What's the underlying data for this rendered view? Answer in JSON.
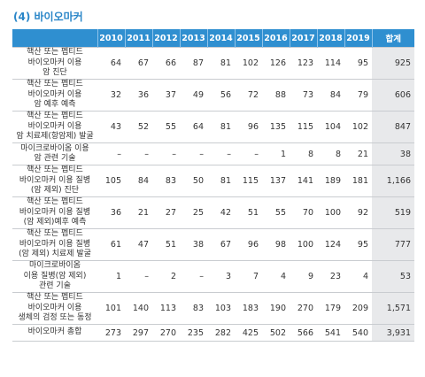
{
  "title": "(4) 바이오마커",
  "columns": [
    "2010",
    "2011",
    "2012",
    "2013",
    "2014",
    "2015",
    "2016",
    "2017",
    "2018",
    "2019",
    "합계"
  ],
  "rows": [
    {
      "label": "핵산 또는 펩티드\n바이오마커 이용\n암 진단",
      "values": [
        "64",
        "67",
        "66",
        "87",
        "81",
        "102",
        "126",
        "123",
        "114",
        "95",
        "925"
      ]
    },
    {
      "label": "핵산 또는 펩티드\n바이오마커 이용\n암 예후 예측",
      "values": [
        "32",
        "36",
        "37",
        "49",
        "56",
        "72",
        "88",
        "73",
        "84",
        "79",
        "606"
      ]
    },
    {
      "label": "핵산 또는 펩티드\n바이오마커 이용\n암 치료제(항암제) 발굴",
      "values": [
        "43",
        "52",
        "55",
        "64",
        "81",
        "96",
        "135",
        "115",
        "104",
        "102",
        "847"
      ]
    },
    {
      "label": "마이크로바이옴 이용\n암 관련 기술",
      "values": [
        "–",
        "–",
        "–",
        "–",
        "–",
        "–",
        "1",
        "8",
        "8",
        "21",
        "38"
      ]
    },
    {
      "label": "핵산 또는 펩티드\n바이오마커 이용 질병\n(암 제외) 진단",
      "values": [
        "105",
        "84",
        "83",
        "50",
        "81",
        "115",
        "137",
        "141",
        "189",
        "181",
        "1,166"
      ]
    },
    {
      "label": "핵산 또는 펩티드\n바이오마커 이용 질병\n(암 제외)예후 예측",
      "values": [
        "36",
        "21",
        "27",
        "25",
        "42",
        "51",
        "55",
        "70",
        "100",
        "92",
        "519"
      ]
    },
    {
      "label": "핵산 또는 펩티드\n바이오마커 이용 질병\n(암 제외) 치료제 발굴",
      "values": [
        "61",
        "47",
        "51",
        "38",
        "67",
        "96",
        "98",
        "100",
        "124",
        "95",
        "777"
      ]
    },
    {
      "label": "마이크로바이옴\n이용 질병(암 제외)\n관련 기술",
      "values": [
        "1",
        "–",
        "2",
        "–",
        "3",
        "7",
        "4",
        "9",
        "23",
        "4",
        "53"
      ]
    },
    {
      "label": "핵산 또는 펩티드\n바이오마커 이용\n생체의 검정 또는 동정",
      "values": [
        "101",
        "140",
        "113",
        "83",
        "103",
        "183",
        "190",
        "270",
        "179",
        "209",
        "1,571"
      ]
    },
    {
      "label": "바이오마커 총합",
      "values": [
        "273",
        "297",
        "270",
        "235",
        "282",
        "425",
        "502",
        "566",
        "541",
        "540",
        "3,931"
      ]
    }
  ],
  "colors": {
    "header_bg": "#2f8fd0",
    "title": "#2a86c8",
    "total_bg": "#e8e9eb"
  }
}
